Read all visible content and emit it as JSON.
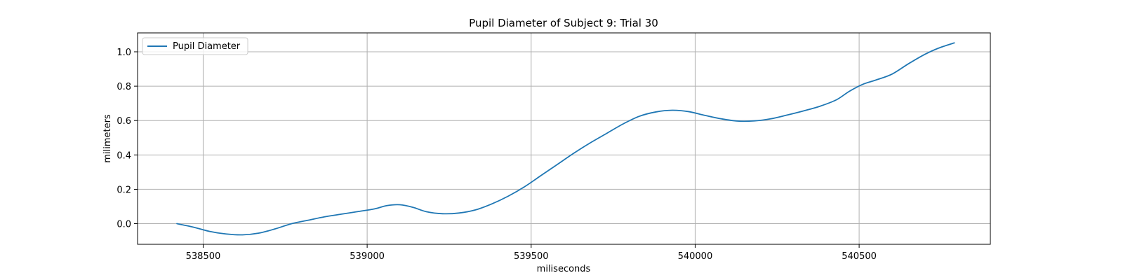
{
  "chart_data": {
    "type": "line",
    "title": "Pupil Diameter of Subject 9: Trial 30",
    "xlabel": "miliseconds",
    "ylabel": "milimeters",
    "xlim": [
      538300,
      540900
    ],
    "ylim": [
      -0.12,
      1.11
    ],
    "xticks": [
      538500,
      539000,
      539500,
      540000,
      540500
    ],
    "yticks": [
      0.0,
      0.2,
      0.4,
      0.6,
      0.8,
      1.0
    ],
    "ytick_labels": [
      "0.0",
      "0.2",
      "0.4",
      "0.6",
      "0.8",
      "1.0"
    ],
    "grid": true,
    "legend_position": "top-left",
    "colors": {
      "series": "#1f77b4",
      "grid": "#b0b0b0",
      "axes": "#000000"
    },
    "series": [
      {
        "name": "Pupil Diameter",
        "x": [
          538420,
          538470,
          538520,
          538570,
          538620,
          538670,
          538720,
          538770,
          538820,
          538870,
          538920,
          538970,
          539020,
          539060,
          539100,
          539140,
          539180,
          539230,
          539280,
          539330,
          539380,
          539430,
          539480,
          539530,
          539580,
          539630,
          539680,
          539730,
          539780,
          539830,
          539880,
          539930,
          539980,
          540030,
          540080,
          540130,
          540180,
          540230,
          540280,
          540330,
          540380,
          540430,
          540470,
          540510,
          540550,
          540600,
          540650,
          540700,
          540740,
          540790
        ],
        "y": [
          0.0,
          -0.02,
          -0.045,
          -0.06,
          -0.065,
          -0.055,
          -0.03,
          0.0,
          0.02,
          0.04,
          0.055,
          0.07,
          0.085,
          0.105,
          0.11,
          0.095,
          0.07,
          0.058,
          0.062,
          0.08,
          0.115,
          0.16,
          0.215,
          0.28,
          0.345,
          0.41,
          0.47,
          0.525,
          0.58,
          0.625,
          0.65,
          0.66,
          0.652,
          0.63,
          0.61,
          0.597,
          0.598,
          0.61,
          0.632,
          0.656,
          0.683,
          0.72,
          0.77,
          0.81,
          0.835,
          0.87,
          0.93,
          0.985,
          1.02,
          1.052
        ]
      }
    ]
  }
}
